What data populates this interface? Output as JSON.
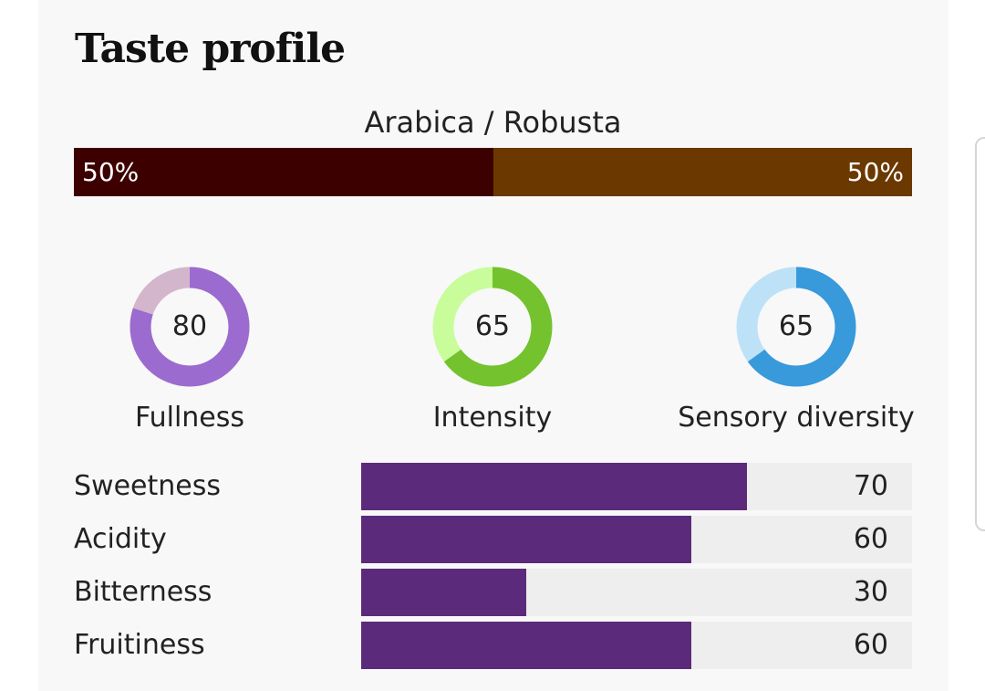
{
  "title": "Taste profile",
  "blend": {
    "label": "Arabica / Robusta",
    "arabica": {
      "percent_label": "50%",
      "fraction": 0.5,
      "color": "#3d0000"
    },
    "robusta": {
      "percent_label": "50%",
      "fraction": 0.5,
      "color": "#6b3800"
    }
  },
  "gauges": [
    {
      "label": "Fullness",
      "value": "80",
      "score": 80,
      "color": "#9b6bcf",
      "track_color": "#d4b6cc"
    },
    {
      "label": "Intensity",
      "value": "65",
      "score": 65,
      "color": "#74c22e",
      "track_color": "#c9fd9c"
    },
    {
      "label": "Sensory diversity",
      "value": "65",
      "score": 65,
      "color": "#3899db",
      "track_color": "#bde2f7"
    }
  ],
  "attributes": [
    {
      "label": "Sweetness",
      "value": "70",
      "score": 70
    },
    {
      "label": "Acidity",
      "value": "60",
      "score": 60
    },
    {
      "label": "Bitterness",
      "value": "30",
      "score": 30
    },
    {
      "label": "Fruitiness",
      "value": "60",
      "score": 60
    }
  ],
  "colors": {
    "attribute_fill": "#5c2a7a",
    "attribute_track": "#eeeeee"
  }
}
